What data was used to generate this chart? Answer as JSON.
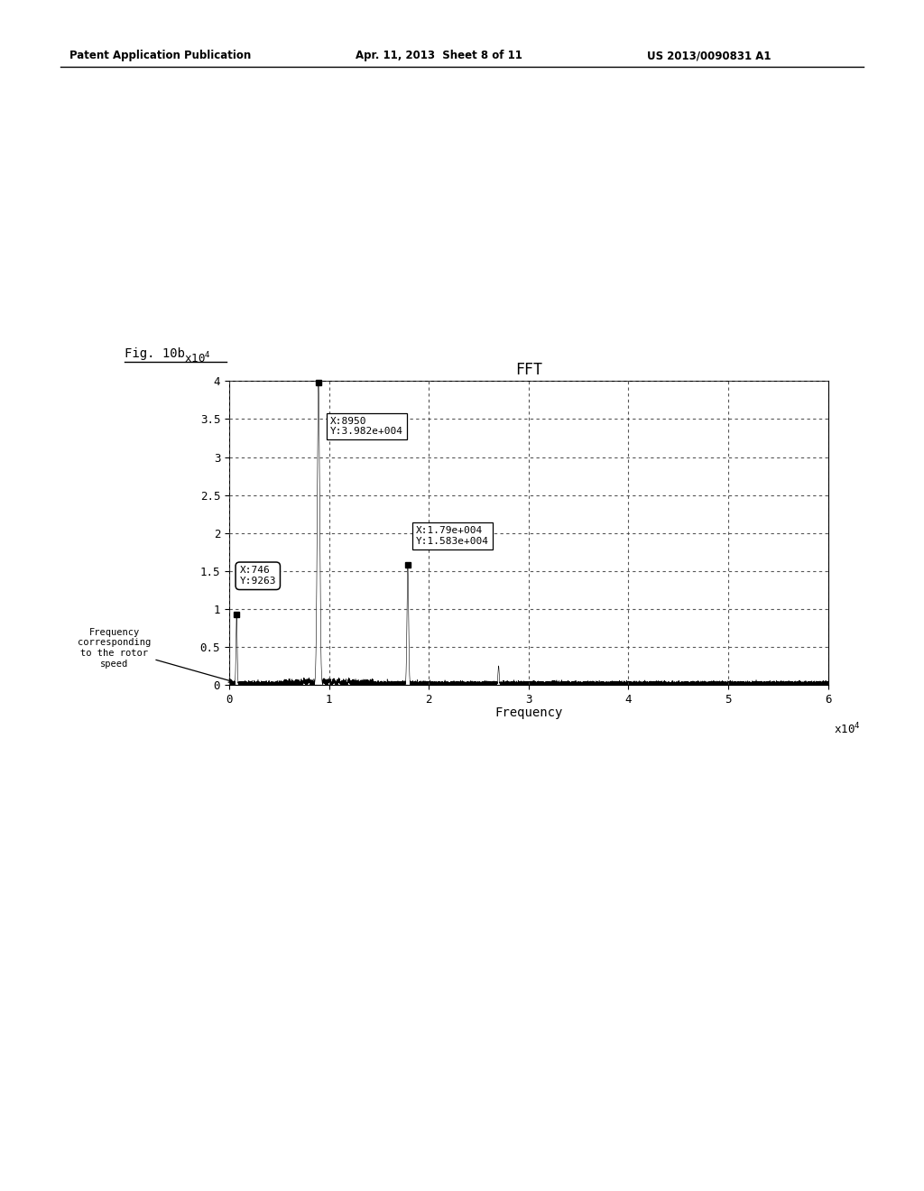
{
  "title": "FFT",
  "xlabel": "Frequency",
  "xlim": [
    0,
    60000
  ],
  "ylim": [
    0,
    40000
  ],
  "yticks": [
    0,
    5000,
    10000,
    15000,
    20000,
    25000,
    30000,
    35000,
    40000
  ],
  "ytick_labels": [
    "0",
    "0.5",
    "1",
    "1.5",
    "2",
    "2.5",
    "3",
    "3.5",
    "4"
  ],
  "xticks": [
    0,
    10000,
    20000,
    30000,
    40000,
    50000,
    60000
  ],
  "xtick_labels": [
    "0",
    "1",
    "2",
    "3",
    "4",
    "5",
    "6"
  ],
  "peak1_x": 8950,
  "peak1_y": 39820,
  "peak2_x": 17900,
  "peak2_y": 15830,
  "peak3_x": 746,
  "peak3_y": 9263,
  "annotation_label": "Frequency\ncorresponding\nto the rotor\nspeed",
  "fig_label": "Fig. 10b",
  "header_left": "Patent Application Publication",
  "header_mid": "Apr. 11, 2013  Sheet 8 of 11",
  "header_right": "US 2013/0090831 A1",
  "background_color": "#ffffff",
  "line_color": "#000000",
  "box1_text": "X:8950\nY:3.982e+004",
  "box2_text": "X:1.79e+004\nY:1.583e+004",
  "box3_text": "X:746\nY:9263"
}
